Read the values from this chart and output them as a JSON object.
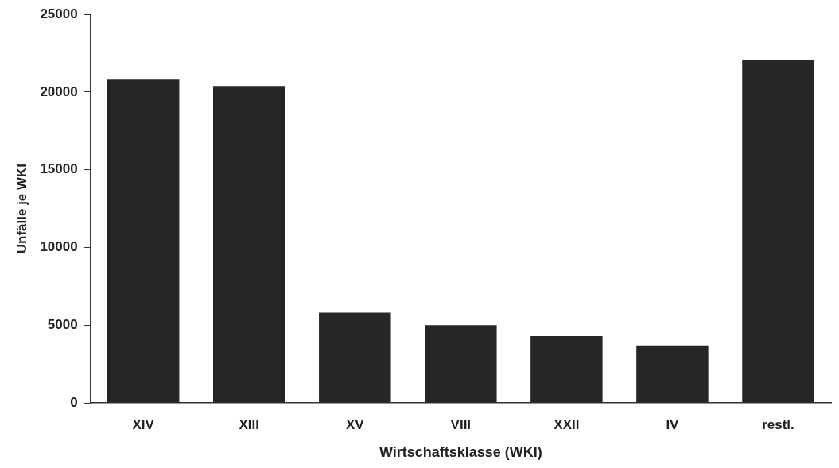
{
  "chart_data": {
    "type": "bar",
    "xlabel": "Wirtschaftsklasse (WKI)",
    "ylabel": "Unfälle je WKI",
    "categories": [
      "XIV",
      "XIII",
      "XV",
      "VIII",
      "XXII",
      "IV",
      "restl."
    ],
    "values": [
      20800,
      20400,
      5800,
      5000,
      4300,
      3700,
      22100
    ],
    "color": "#262626",
    "ylim": [
      0,
      25000
    ],
    "yticks": [
      0,
      5000,
      10000,
      15000,
      20000,
      25000
    ],
    "grid": false,
    "legend": false
  }
}
